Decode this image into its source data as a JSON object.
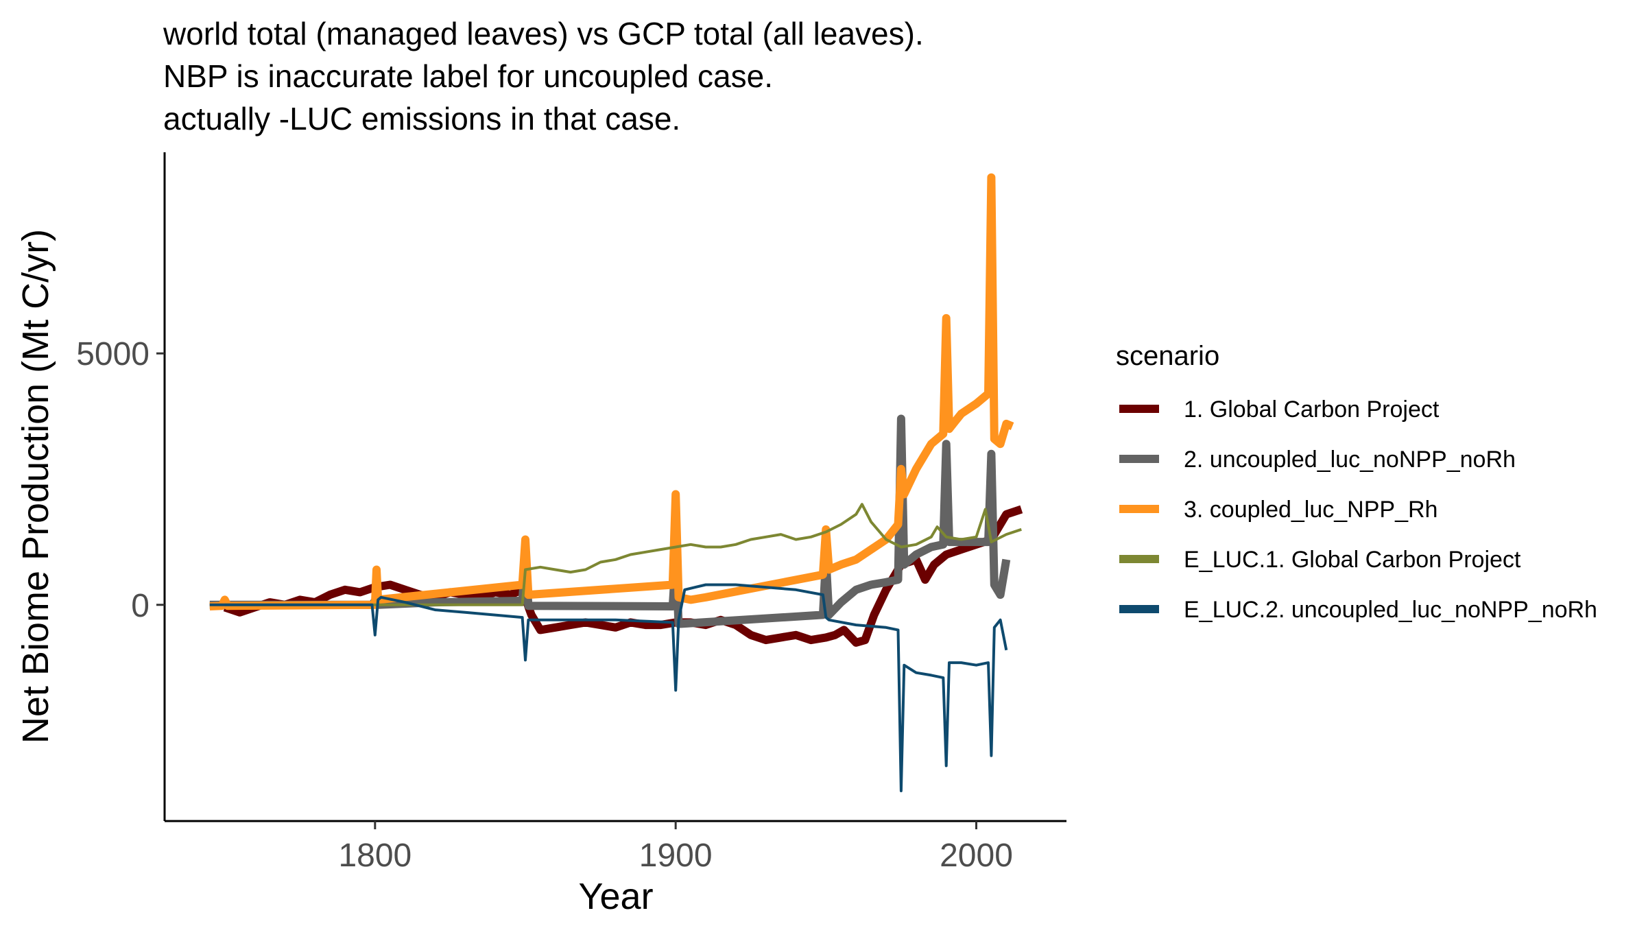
{
  "chart_data": {
    "type": "line",
    "title_lines": [
      "world total (managed leaves) vs GCP total (all leaves).",
      "NBP is inaccurate label for uncoupled case.",
      "actually -LUC emissions in that case."
    ],
    "xlabel": "Year",
    "ylabel": "Net Biome Production (Mt C/yr)",
    "xlim": [
      1730,
      2030
    ],
    "ylim": [
      -4300,
      9000
    ],
    "x_ticks": [
      1800,
      1900,
      2000
    ],
    "y_ticks": [
      0,
      5000
    ],
    "grid": false,
    "legend": {
      "title": "scenario",
      "position": "right"
    },
    "series": [
      {
        "name": "1. Global Carbon Project",
        "color": "#6b0000",
        "width": 12,
        "x": [
          1750,
          1755,
          1760,
          1765,
          1770,
          1775,
          1780,
          1785,
          1790,
          1795,
          1800,
          1805,
          1810,
          1815,
          1820,
          1825,
          1830,
          1835,
          1840,
          1845,
          1849,
          1852,
          1855,
          1860,
          1865,
          1870,
          1875,
          1880,
          1885,
          1890,
          1895,
          1900,
          1905,
          1910,
          1915,
          1920,
          1925,
          1930,
          1935,
          1940,
          1945,
          1950,
          1953,
          1956,
          1960,
          1963,
          1966,
          1970,
          1975,
          1980,
          1983,
          1986,
          1990,
          1995,
          2000,
          2005,
          2010,
          2015
        ],
        "y": [
          -50,
          -150,
          -50,
          50,
          0,
          100,
          50,
          200,
          300,
          250,
          350,
          400,
          300,
          200,
          150,
          250,
          200,
          150,
          250,
          200,
          300,
          -200,
          -500,
          -450,
          -400,
          -350,
          -400,
          -450,
          -350,
          -400,
          -400,
          -350,
          -350,
          -400,
          -300,
          -400,
          -600,
          -700,
          -650,
          -600,
          -700,
          -650,
          -600,
          -500,
          -750,
          -700,
          -200,
          300,
          800,
          900,
          500,
          800,
          1000,
          1100,
          1200,
          1300,
          1800,
          1900
        ]
      },
      {
        "name": "2. uncoupled_luc_noNPP_noRh",
        "color": "#636363",
        "width": 12,
        "x": [
          1745,
          1799,
          1800,
          1801,
          1820,
          1849,
          1850,
          1851,
          1899,
          1900,
          1901,
          1949,
          1950,
          1951,
          1955,
          1960,
          1965,
          1970,
          1974,
          1975,
          1976,
          1980,
          1985,
          1989,
          1990,
          1991,
          1995,
          2000,
          2004,
          2005,
          2006,
          2008,
          2010
        ],
        "y": [
          0,
          0,
          80,
          0,
          50,
          80,
          900,
          -20,
          -30,
          900,
          -380,
          -200,
          900,
          -200,
          50,
          300,
          400,
          450,
          500,
          3700,
          800,
          1000,
          1150,
          1200,
          3200,
          1250,
          1250,
          1250,
          1250,
          3000,
          400,
          200,
          900
        ]
      },
      {
        "name": "3. coupled_luc_NPP_Rh",
        "color": "#ff931e",
        "width": 12,
        "x": [
          1745,
          1749,
          1750,
          1751,
          1800,
          1800.5,
          1801,
          1849,
          1850,
          1851,
          1899,
          1900,
          1901,
          1905,
          1910,
          1949,
          1950,
          1951,
          1955,
          1960,
          1965,
          1970,
          1974,
          1975,
          1976,
          1980,
          1985,
          1989,
          1990,
          1991,
          1995,
          2000,
          2004,
          2005,
          2006,
          2008,
          2010,
          2012
        ],
        "y": [
          -30,
          -20,
          100,
          -20,
          0,
          700,
          100,
          400,
          1300,
          200,
          400,
          2200,
          150,
          100,
          150,
          600,
          1500,
          700,
          800,
          900,
          1100,
          1300,
          1600,
          2700,
          2200,
          2700,
          3200,
          3400,
          5700,
          3500,
          3800,
          4000,
          4200,
          8500,
          3300,
          3200,
          3600,
          3550
        ]
      },
      {
        "name": "E_LUC.1. Global Carbon Project",
        "color": "#7d8732",
        "width": 4,
        "x": [
          1750,
          1760,
          1770,
          1780,
          1790,
          1800,
          1810,
          1820,
          1830,
          1840,
          1849,
          1850,
          1855,
          1860,
          1865,
          1870,
          1875,
          1880,
          1885,
          1890,
          1895,
          1900,
          1905,
          1910,
          1915,
          1920,
          1925,
          1930,
          1935,
          1940,
          1945,
          1950,
          1955,
          1960,
          1962,
          1965,
          1970,
          1975,
          1980,
          1985,
          1987,
          1990,
          1995,
          2000,
          2003,
          2005,
          2010,
          2015
        ],
        "y": [
          0,
          0,
          0,
          0,
          0,
          0,
          0,
          0,
          0,
          0,
          0,
          700,
          750,
          700,
          650,
          700,
          850,
          900,
          1000,
          1050,
          1100,
          1150,
          1200,
          1150,
          1150,
          1200,
          1300,
          1350,
          1400,
          1300,
          1350,
          1450,
          1600,
          1800,
          2000,
          1650,
          1300,
          1150,
          1200,
          1350,
          1550,
          1350,
          1300,
          1350,
          1900,
          1250,
          1400,
          1500
        ]
      },
      {
        "name": "E_LUC.2. uncoupled_luc_noNPP_noRh",
        "color": "#0e4a6e",
        "width": 4,
        "x": [
          1745,
          1799,
          1800,
          1801,
          1802,
          1810,
          1820,
          1830,
          1849,
          1850,
          1851,
          1860,
          1870,
          1880,
          1899,
          1900,
          1901,
          1903,
          1910,
          1920,
          1930,
          1940,
          1949,
          1950,
          1951,
          1960,
          1970,
          1974,
          1975,
          1976,
          1980,
          1985,
          1989,
          1990,
          1991,
          1995,
          2000,
          2004,
          2005,
          2006,
          2008,
          2010
        ],
        "y": [
          0,
          0,
          -600,
          100,
          150,
          50,
          -100,
          -150,
          -250,
          -1100,
          -300,
          -300,
          -300,
          -300,
          -350,
          -1700,
          -300,
          300,
          400,
          400,
          350,
          300,
          200,
          -250,
          -300,
          -400,
          -450,
          -500,
          -3700,
          -1200,
          -1350,
          -1400,
          -1450,
          -3200,
          -1150,
          -1150,
          -1200,
          -1150,
          -3000,
          -450,
          -300,
          -900
        ]
      }
    ]
  }
}
